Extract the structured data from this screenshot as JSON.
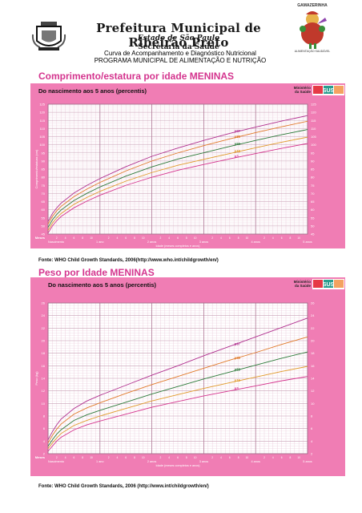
{
  "header": {
    "title": "Prefeitura Municipal de Ribeirão Preto",
    "state": "Estado de São Paulo",
    "secretaria": "Secretaria da Saúde",
    "curve_subtitle": "Curva de Acompanhamento e Diagnóstico Nutricional",
    "program": "PROGRAMA MUNICIPAL DE ALIMENTAÇÃO E NUTRIÇÃO",
    "logo_right_caption": "GAMAZERINHA",
    "logo_right_sub": "ALIMENTAÇÃO SAUDÁVEL"
  },
  "badges": {
    "ministerio": [
      "Ministério",
      "da Saúde"
    ],
    "sus": "SUS"
  },
  "chart_data": [
    {
      "type": "line",
      "title": "Comprimento/estatura por idade MENINAS",
      "subtitle": "Do nascimento aos 5 anos (percentis)",
      "source": "Fonte: WHO Child Growth Standards, 2006(http://www.who.int/childgrowth/en/)",
      "ylabel": "Comprimento/estatura (cm)",
      "xlabel": "Idade (meses completos e anos)",
      "xtitle": "Meses",
      "xlim": [
        0,
        60
      ],
      "ylim": [
        45,
        125
      ],
      "yticks": [
        45,
        50,
        55,
        60,
        65,
        70,
        75,
        80,
        85,
        90,
        95,
        100,
        105,
        110,
        115,
        120,
        125
      ],
      "xlabels": [
        {
          "x": 0,
          "label": "Nascimento"
        },
        {
          "x": 12,
          "label": "1 ano"
        },
        {
          "x": 24,
          "label": "2 anos"
        },
        {
          "x": 36,
          "label": "3 anos"
        },
        {
          "x": 48,
          "label": "4 anos"
        },
        {
          "x": 60,
          "label": "5 anos"
        }
      ],
      "x": [
        0,
        1,
        2,
        3,
        6,
        9,
        12,
        18,
        24,
        30,
        36,
        42,
        48,
        54,
        60
      ],
      "series": [
        {
          "name": "p97",
          "color": "#b0308f",
          "values": [
            52.7,
            57.6,
            61.1,
            64.0,
            70.3,
            75.0,
            79.2,
            86.5,
            92.9,
            98.0,
            102.7,
            107.0,
            110.9,
            114.6,
            118.0
          ]
        },
        {
          "name": "p85",
          "color": "#e07a2a",
          "values": [
            51.1,
            55.8,
            59.3,
            62.0,
            68.1,
            72.7,
            76.8,
            83.9,
            90.0,
            95.0,
            99.5,
            103.6,
            107.5,
            111.1,
            114.5
          ]
        },
        {
          "name": "p50",
          "color": "#2d7a3a",
          "values": [
            49.1,
            53.7,
            57.1,
            59.8,
            65.7,
            70.1,
            74.0,
            80.7,
            86.4,
            91.2,
            95.1,
            99.0,
            102.7,
            106.2,
            109.4
          ]
        },
        {
          "name": "p15",
          "color": "#e09a2a",
          "values": [
            47.2,
            51.7,
            55.0,
            57.6,
            63.3,
            67.6,
            71.3,
            77.6,
            82.9,
            87.4,
            91.0,
            94.6,
            98.2,
            101.6,
            104.7
          ]
        },
        {
          "name": "p3",
          "color": "#d4348e",
          "values": [
            45.6,
            50.0,
            53.2,
            55.8,
            61.2,
            65.3,
            68.9,
            75.0,
            80.0,
            84.3,
            87.9,
            91.3,
            94.6,
            97.8,
            100.8
          ]
        }
      ]
    },
    {
      "type": "line",
      "title": "Peso por Idade MENINAS",
      "subtitle": "Do nascimento aos 5 anos (percentis)",
      "source": "Fonte: WHO Child Growth Standards, 2006 (http://www.int/childgrowth/en/)",
      "ylabel": "Peso (kg)",
      "xlabel": "Idade (meses completos e anos)",
      "xtitle": "Meses",
      "xlim": [
        0,
        60
      ],
      "ylim": [
        2,
        26
      ],
      "yticks": [
        2,
        4,
        6,
        8,
        10,
        12,
        14,
        16,
        18,
        20,
        22,
        24,
        26
      ],
      "xlabels": [
        {
          "x": 0,
          "label": "Nascimento"
        },
        {
          "x": 12,
          "label": "1 ano"
        },
        {
          "x": 24,
          "label": "2 anos"
        },
        {
          "x": 36,
          "label": "3 anos"
        },
        {
          "x": 48,
          "label": "4 anos"
        },
        {
          "x": 60,
          "label": "5 anos"
        }
      ],
      "x": [
        0,
        1,
        2,
        3,
        6,
        9,
        12,
        18,
        24,
        30,
        36,
        42,
        48,
        54,
        60
      ],
      "series": [
        {
          "name": "p97",
          "color": "#b0308f",
          "values": [
            4.2,
            5.5,
            6.6,
            7.5,
            9.2,
            10.4,
            11.3,
            12.9,
            14.5,
            16.0,
            17.6,
            19.1,
            20.6,
            22.1,
            23.6
          ]
        },
        {
          "name": "p85",
          "color": "#e07a2a",
          "values": [
            3.7,
            4.9,
            5.9,
            6.7,
            8.3,
            9.3,
            10.1,
            11.6,
            13.0,
            14.3,
            15.6,
            16.9,
            18.1,
            19.4,
            20.6
          ]
        },
        {
          "name": "p50",
          "color": "#2d7a3a",
          "values": [
            3.2,
            4.2,
            5.1,
            5.8,
            7.3,
            8.2,
            8.9,
            10.2,
            11.5,
            12.7,
            13.9,
            15.0,
            16.1,
            17.2,
            18.2
          ]
        },
        {
          "name": "p15",
          "color": "#e09a2a",
          "values": [
            2.8,
            3.7,
            4.5,
            5.2,
            6.5,
            7.3,
            8.0,
            9.2,
            10.4,
            11.4,
            12.4,
            13.3,
            14.2,
            15.1,
            15.9
          ]
        },
        {
          "name": "p3",
          "color": "#d4348e",
          "values": [
            2.4,
            3.2,
            4.0,
            4.6,
            5.8,
            6.6,
            7.2,
            8.3,
            9.4,
            10.3,
            11.2,
            12.0,
            12.8,
            13.6,
            14.3
          ]
        }
      ]
    }
  ]
}
